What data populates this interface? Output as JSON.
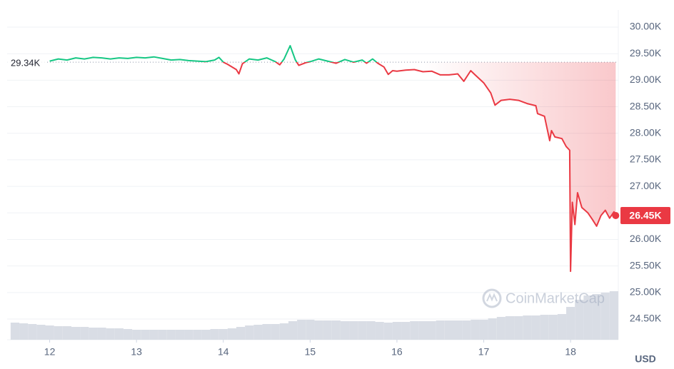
{
  "chart_data": {
    "type": "line",
    "x": [
      12.0,
      12.1,
      12.2,
      12.3,
      12.4,
      12.5,
      12.6,
      12.7,
      12.8,
      12.9,
      13.0,
      13.1,
      13.2,
      13.3,
      13.4,
      13.5,
      13.6,
      13.7,
      13.8,
      13.9,
      13.95,
      14.0,
      14.05,
      14.15,
      14.18,
      14.22,
      14.3,
      14.4,
      14.5,
      14.6,
      14.65,
      14.7,
      14.77,
      14.83,
      14.87,
      14.95,
      15.0,
      15.1,
      15.2,
      15.3,
      15.4,
      15.5,
      15.6,
      15.65,
      15.72,
      15.78,
      15.85,
      15.9,
      15.95,
      16.0,
      16.1,
      16.2,
      16.3,
      16.4,
      16.5,
      16.6,
      16.7,
      16.77,
      16.85,
      16.9,
      17.0,
      17.08,
      17.13,
      17.2,
      17.3,
      17.4,
      17.5,
      17.6,
      17.62,
      17.7,
      17.76,
      17.78,
      17.82,
      17.9,
      17.95,
      17.99,
      18.0,
      18.02,
      18.05,
      18.08,
      18.13,
      18.2,
      18.25,
      18.3,
      18.35,
      18.4,
      18.45,
      18.5,
      18.52
    ],
    "values": [
      29360,
      29400,
      29380,
      29420,
      29400,
      29430,
      29420,
      29400,
      29420,
      29410,
      29430,
      29420,
      29440,
      29410,
      29380,
      29390,
      29370,
      29360,
      29350,
      29380,
      29430,
      29340,
      29300,
      29200,
      29120,
      29310,
      29400,
      29380,
      29420,
      29350,
      29290,
      29400,
      29650,
      29380,
      29280,
      29330,
      29350,
      29400,
      29360,
      29320,
      29390,
      29340,
      29380,
      29320,
      29400,
      29320,
      29250,
      29110,
      29180,
      29170,
      29190,
      29200,
      29160,
      29170,
      29100,
      29100,
      29120,
      28980,
      29180,
      29100,
      28950,
      28760,
      28530,
      28620,
      28640,
      28620,
      28560,
      28520,
      28370,
      28320,
      27860,
      28050,
      27930,
      27900,
      27750,
      27680,
      25400,
      26700,
      26280,
      26880,
      26600,
      26500,
      26380,
      26250,
      26450,
      26550,
      26400,
      26520,
      26450
    ],
    "last_label": "26.45K",
    "up_color": "#16c784",
    "down_color": "#ea3943",
    "baseline": {
      "value": 29340,
      "label": "29.34K"
    },
    "xlim": [
      11.51,
      18.55
    ],
    "xticks": [
      12,
      13,
      14,
      15,
      16,
      17,
      18
    ],
    "ylim": [
      24110,
      30323
    ],
    "yticks": [
      {
        "value": 24500,
        "label": "24.50K"
      },
      {
        "value": 25000,
        "label": "25.00K"
      },
      {
        "value": 25500,
        "label": "25.50K"
      },
      {
        "value": 26000,
        "label": "26.00K"
      },
      {
        "value": 26500,
        "label": "26.50K"
      },
      {
        "value": 27000,
        "label": "27.00K"
      },
      {
        "value": 27500,
        "label": "27.50K"
      },
      {
        "value": 28000,
        "label": "28.00K"
      },
      {
        "value": 28500,
        "label": "28.50K"
      },
      {
        "value": 29000,
        "label": "29.00K"
      },
      {
        "value": 29500,
        "label": "29.50K"
      },
      {
        "value": 30000,
        "label": "30.00K"
      }
    ],
    "y_unit": "USD",
    "grid": true,
    "watermark": "CoinMarketCap",
    "volume": {
      "color": "#d9dde5",
      "x": [
        11.6,
        11.7,
        11.8,
        11.9,
        12.0,
        12.1,
        12.2,
        12.3,
        12.4,
        12.5,
        12.6,
        12.7,
        12.8,
        12.9,
        13.0,
        13.1,
        13.2,
        13.3,
        13.4,
        13.5,
        13.6,
        13.7,
        13.8,
        13.9,
        14.0,
        14.1,
        14.2,
        14.3,
        14.4,
        14.5,
        14.6,
        14.7,
        14.8,
        14.9,
        15.0,
        15.1,
        15.2,
        15.3,
        15.4,
        15.5,
        15.6,
        15.7,
        15.8,
        15.9,
        16.0,
        16.1,
        16.2,
        16.3,
        16.4,
        16.5,
        16.6,
        16.7,
        16.8,
        16.9,
        17.0,
        17.1,
        17.2,
        17.3,
        17.4,
        17.5,
        17.6,
        17.7,
        17.8,
        17.9,
        18.0,
        18.1,
        18.2,
        18.3,
        18.4,
        18.5
      ],
      "values": [
        24,
        23,
        22,
        21,
        20,
        19,
        19,
        18,
        18,
        17,
        17,
        16,
        16,
        15,
        14,
        14,
        14,
        14,
        14,
        14,
        14,
        14,
        14,
        15,
        15,
        16,
        18,
        20,
        21,
        22,
        22,
        23,
        26,
        28,
        28,
        27,
        27,
        27,
        26,
        26,
        26,
        26,
        25,
        24,
        25,
        25,
        26,
        26,
        26,
        27,
        27,
        27,
        27,
        28,
        28,
        30,
        32,
        33,
        33,
        34,
        34,
        35,
        35,
        36,
        46,
        56,
        62,
        64,
        66,
        68
      ]
    }
  }
}
